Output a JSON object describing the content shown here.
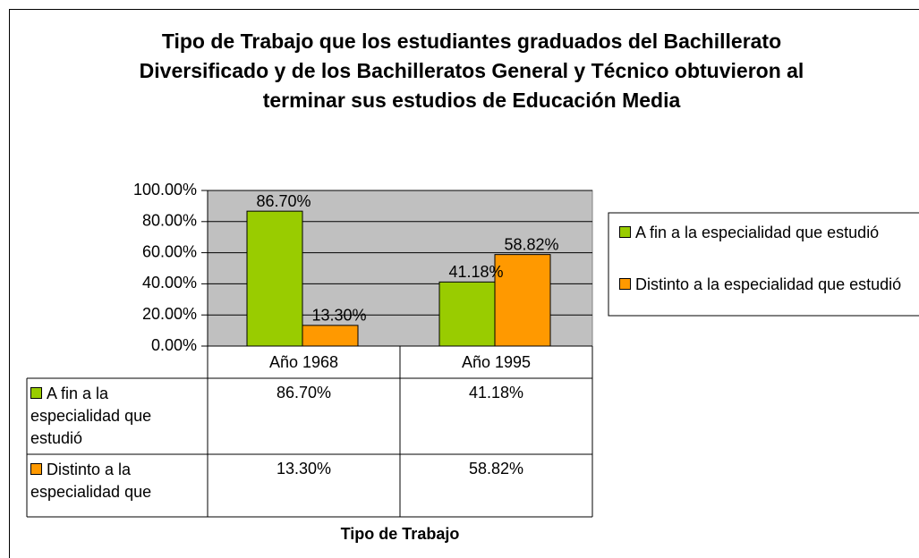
{
  "chart_data": {
    "type": "bar",
    "title": "Tipo de Trabajo que los estudiantes graduados del Bachillerato Diversificado y de los Bachilleratos General y Técnico obtuvieron al terminar sus estudios de Educación Media",
    "x_label": "Tipo de Trabajo",
    "categories": [
      "Año 1968",
      "Año 1995"
    ],
    "series": [
      {
        "name": "A fin a la especialidad que estudió",
        "color": "#99cc00",
        "values": [
          86.7,
          41.18
        ],
        "value_labels": [
          "86.70%",
          "41.18%"
        ]
      },
      {
        "name": "Distinto a la especialidad que estudió",
        "color": "#ff9900",
        "values": [
          13.3,
          58.82
        ],
        "value_labels": [
          "13.30%",
          "58.82%"
        ]
      }
    ],
    "ylim": [
      0,
      100
    ],
    "yticks": [
      {
        "value": 0,
        "label": "0.00%"
      },
      {
        "value": 20,
        "label": "20.00%"
      },
      {
        "value": 40,
        "label": "40.00%"
      },
      {
        "value": 60,
        "label": "60.00%"
      },
      {
        "value": 80,
        "label": "80.00%"
      },
      {
        "value": 100,
        "label": "100.00%"
      }
    ],
    "grid": true,
    "legend": "right",
    "plot_background": "#c0c0c0"
  }
}
